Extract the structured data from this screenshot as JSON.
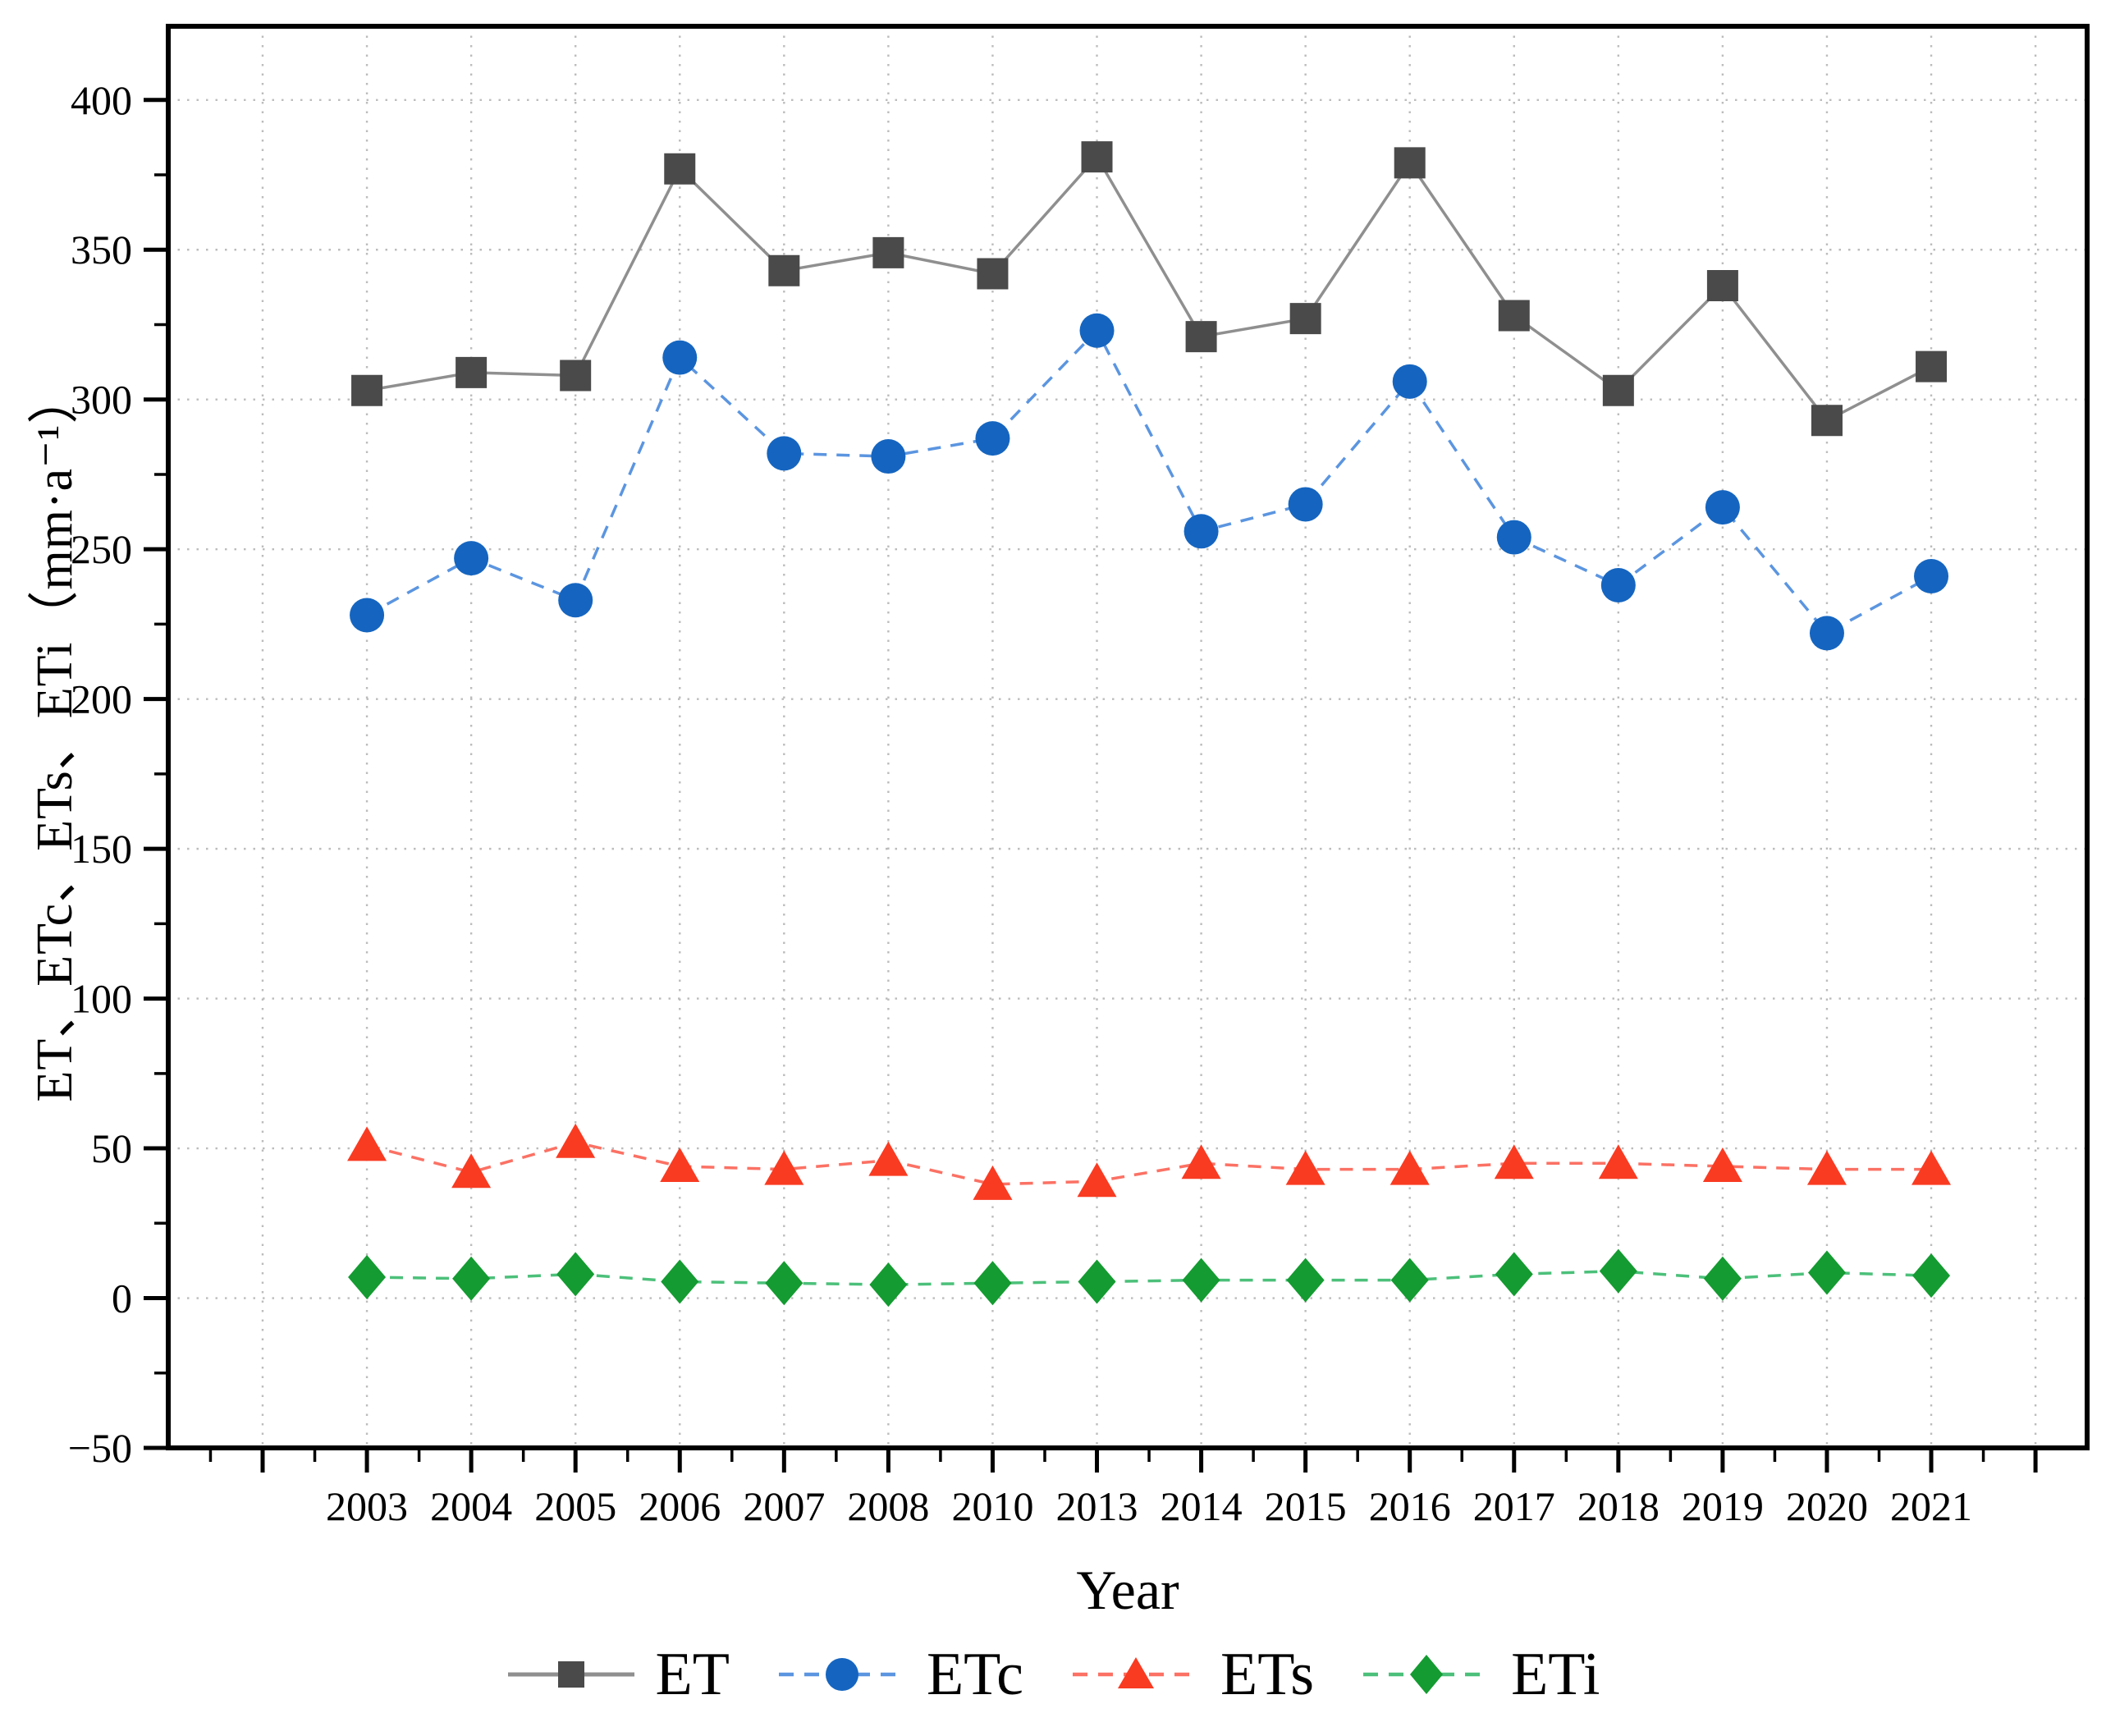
{
  "axes": {
    "x_label": "Year",
    "y_label": "ET、ETc、ETs、ETi（mm·a⁻¹）",
    "y_tick_labels": [
      "400",
      "350",
      "300",
      "250",
      "200",
      "150",
      "100",
      "50",
      "0",
      "−50"
    ]
  },
  "chart_data": {
    "type": "line",
    "title": "",
    "xlabel": "Year",
    "ylabel": "ET、ETc、ETs、ETi（mm·a⁻¹）",
    "categories": [
      "2003",
      "2004",
      "2005",
      "2006",
      "2007",
      "2008",
      "2010",
      "2013",
      "2014",
      "2015",
      "2016",
      "2017",
      "2018",
      "2019",
      "2020",
      "2021"
    ],
    "series": [
      {
        "name": "ET",
        "marker": "square",
        "line_style": "solid",
        "color": "#4a4a4a",
        "line_color": "#8f8f8f",
        "values": [
          303,
          309,
          308,
          377,
          343,
          349,
          342,
          381,
          321,
          327,
          379,
          328,
          303,
          338,
          293,
          311
        ]
      },
      {
        "name": "ETc",
        "marker": "circle",
        "line_style": "dashed",
        "color": "#1565c0",
        "line_color": "#5b95e0",
        "values": [
          228,
          247,
          233,
          314,
          282,
          281,
          287,
          323,
          256,
          265,
          306,
          254,
          238,
          264,
          222,
          241
        ]
      },
      {
        "name": "ETs",
        "marker": "triangle",
        "line_style": "dashed",
        "color": "#f93b22",
        "line_color": "#fb7164",
        "values": [
          51,
          42,
          52,
          44,
          43,
          46,
          38,
          39,
          45,
          43,
          43,
          45,
          45,
          44,
          43,
          43
        ]
      },
      {
        "name": "ETi",
        "marker": "diamond",
        "line_style": "dashed",
        "color": "#149b31",
        "line_color": "#4cc07a",
        "values": [
          7,
          6.5,
          8,
          5.5,
          5,
          4.5,
          5,
          5.5,
          6,
          6,
          6,
          8,
          9,
          6.5,
          8.5,
          7.5
        ]
      }
    ],
    "ylim": [
      -50,
      425
    ],
    "y_tick_step": 50,
    "y_minor_tick_step": 25,
    "grid": "dotted",
    "legend_position": "bottom",
    "grid_color": "#bcbcbc",
    "background": "#ffffff"
  }
}
